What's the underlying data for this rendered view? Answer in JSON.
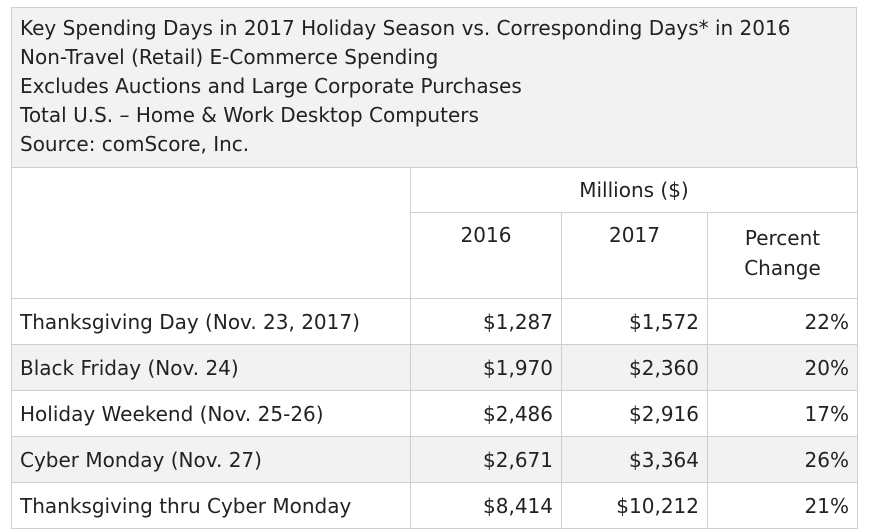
{
  "chart_data": {
    "type": "table",
    "title_lines": [
      "Key Spending Days in 2017 Holiday Season vs. Corresponding Days* in 2016",
      "Non-Travel (Retail) E-Commerce Spending",
      "Excludes Auctions and Large Corporate Purchases",
      "Total U.S. – Home & Work Desktop Computers",
      "Source: comScore, Inc."
    ],
    "units_header": "Millions ($)",
    "columns": [
      "2016",
      "2017",
      "Percent Change"
    ],
    "rows": [
      {
        "label": "Thanksgiving Day (Nov. 23, 2017)",
        "v2016": "$1,287",
        "v2017": "$1,572",
        "pct": "22%"
      },
      {
        "label": "Black Friday (Nov. 24)",
        "v2016": "$1,970",
        "v2017": "$2,360",
        "pct": "20%"
      },
      {
        "label": "Holiday Weekend (Nov. 25-26)",
        "v2016": "$2,486",
        "v2017": "$2,916",
        "pct": "17%"
      },
      {
        "label": "Cyber Monday (Nov. 27)",
        "v2016": "$2,671",
        "v2017": "$3,364",
        "pct": "26%"
      },
      {
        "label": "Thanksgiving thru Cyber Monday",
        "v2016": "$8,414",
        "v2017": "$10,212",
        "pct": "21%"
      }
    ]
  }
}
